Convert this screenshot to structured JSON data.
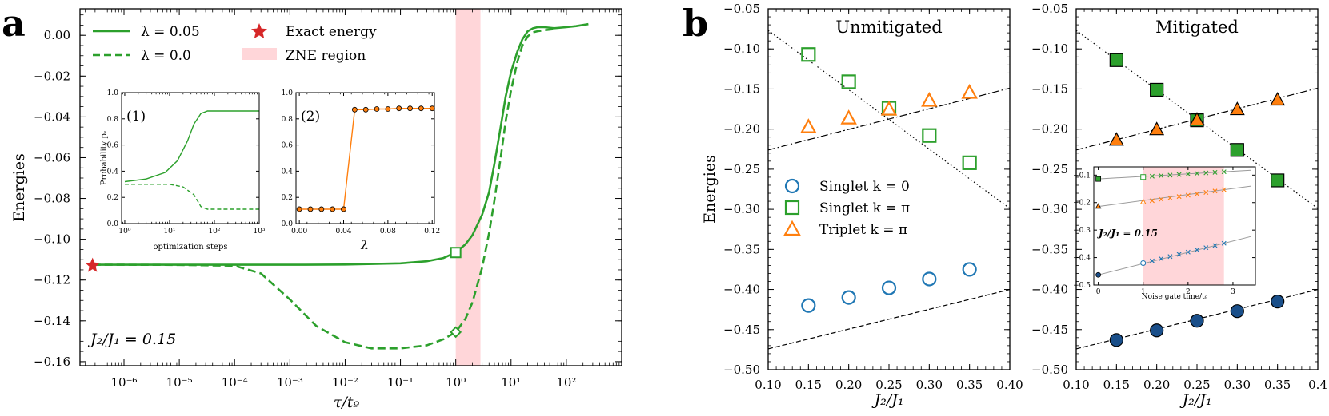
{
  "panel_a": {
    "letter": "a",
    "annotation": "J₂/J₁ = 0.15",
    "legend": {
      "line1": "λ = 0.05",
      "line2": "λ = 0.0",
      "star": "Exact energy",
      "region": "ZNE region"
    },
    "inset1": {
      "tag": "(1)",
      "xlabel": "optimization steps",
      "ylabel": "Probability pₛ"
    },
    "inset2": {
      "tag": "(2)",
      "xlabel": "λ"
    }
  },
  "panel_b": {
    "letter": "b",
    "left_title": "Unmitigated",
    "right_title": "Mitigated",
    "inset_annotation": "J₂/J₁ = 0.15",
    "inset_xlabel": "Noise gate time/t₉",
    "legend": {
      "s0": "Singlet k = 0",
      "spi": "Singlet k = π",
      "tpi": "Triplet k = π"
    }
  },
  "colors": {
    "green": "#2ca02c",
    "orange": "#ff7f0e",
    "blue": "#1f77b4",
    "darkblue": "#1a4f8a",
    "pink": "#ffd6d9",
    "red": "#d62728"
  },
  "chart_data": [
    {
      "id": "a-main",
      "type": "line",
      "xscale": "log",
      "xlabel": "τ/t₉",
      "ylabel": "Energies",
      "xlim": [
        1.6e-07,
        1000
      ],
      "ylim": [
        -0.162,
        0.013
      ],
      "xticks": [
        1e-06,
        1e-05,
        0.0001,
        0.001,
        0.01,
        0.1,
        1,
        10,
        100
      ],
      "xticklabels": [
        "10⁻⁶",
        "10⁻⁵",
        "10⁻⁴",
        "10⁻³",
        "10⁻²",
        "10⁻¹",
        "10⁰",
        "10¹",
        "10²"
      ],
      "yticks": [
        0.0,
        -0.02,
        -0.04,
        -0.06,
        -0.08,
        -0.1,
        -0.12,
        -0.14,
        -0.16
      ],
      "yticklabels": [
        "0.00",
        "−0.02",
        "−0.04",
        "−0.06",
        "−0.08",
        "−0.10",
        "−0.12",
        "−0.14",
        "−0.16"
      ],
      "zne_region": [
        1,
        2.8
      ],
      "exact_energy": {
        "x": 2.7e-07,
        "y": -0.1125
      },
      "series": [
        {
          "name": "λ = 0.05",
          "style": "solid",
          "x": [
            2.7e-07,
            1e-06,
            1e-05,
            0.0001,
            0.001,
            0.01,
            0.1,
            0.3,
            0.6,
            1.0,
            1.5,
            2.0,
            3.0,
            4.0,
            5.0,
            6.5,
            8.0,
            10,
            13,
            16,
            20,
            25,
            30,
            40,
            60,
            100,
            150,
            250
          ],
          "y": [
            -0.1125,
            -0.1125,
            -0.1125,
            -0.1125,
            -0.1125,
            -0.1124,
            -0.1118,
            -0.1108,
            -0.1092,
            -0.1065,
            -0.1025,
            -0.098,
            -0.088,
            -0.077,
            -0.063,
            -0.045,
            -0.03,
            -0.018,
            -0.008,
            -0.002,
            0.002,
            0.0035,
            0.004,
            0.004,
            0.0035,
            0.004,
            0.0045,
            0.0055
          ]
        },
        {
          "name": "λ = 0.0",
          "style": "dashed",
          "x": [
            2.7e-07,
            1e-06,
            1e-05,
            0.0001,
            0.0003,
            0.001,
            0.003,
            0.01,
            0.03,
            0.1,
            0.3,
            0.6,
            1.0,
            1.5,
            2.0,
            3.0,
            4.0,
            5.0,
            6.5,
            8.0,
            10,
            13,
            16,
            20,
            25,
            30,
            40,
            60
          ],
          "y": [
            -0.1125,
            -0.1125,
            -0.1126,
            -0.113,
            -0.1168,
            -0.1295,
            -0.1425,
            -0.1505,
            -0.1535,
            -0.1535,
            -0.152,
            -0.149,
            -0.1455,
            -0.139,
            -0.131,
            -0.114,
            -0.097,
            -0.081,
            -0.06,
            -0.042,
            -0.027,
            -0.013,
            -0.005,
            -0.0005,
            0.0015,
            0.002,
            0.0025,
            0.003
          ]
        }
      ],
      "markers": [
        {
          "shape": "square",
          "x": 1.0,
          "y": -0.1065
        },
        {
          "shape": "diamond",
          "x": 1.0,
          "y": -0.1455
        }
      ]
    },
    {
      "id": "a-inset1",
      "type": "line",
      "xscale": "log",
      "xlim": [
        0.85,
        1000
      ],
      "ylim": [
        0,
        1
      ],
      "yticks": [
        0,
        0.2,
        0.4,
        0.6,
        0.8,
        1.0
      ],
      "yticklabels": [
        "0.0",
        "0.2",
        "0.4",
        "0.6",
        "0.8",
        "1.0"
      ],
      "xticks": [
        1,
        10,
        100,
        1000
      ],
      "xticklabels": [
        "10⁰",
        "10¹",
        "10²",
        "10³"
      ],
      "series": [
        {
          "name": "λ = 0.05",
          "style": "solid",
          "x": [
            1,
            3,
            8,
            15,
            25,
            35,
            50,
            70,
            100,
            1000
          ],
          "y": [
            0.32,
            0.34,
            0.39,
            0.48,
            0.63,
            0.76,
            0.84,
            0.86,
            0.86,
            0.86
          ]
        },
        {
          "name": "λ = 0.0",
          "style": "dashed",
          "x": [
            1,
            10,
            20,
            35,
            50,
            70,
            100,
            1000
          ],
          "y": [
            0.3,
            0.3,
            0.28,
            0.22,
            0.13,
            0.11,
            0.11,
            0.11
          ]
        }
      ]
    },
    {
      "id": "a-inset2",
      "type": "line",
      "xlim": [
        -0.003,
        0.122
      ],
      "ylim": [
        0,
        1
      ],
      "yticks": [
        0,
        0.2,
        0.4,
        0.6,
        0.8,
        1.0
      ],
      "yticklabels": [
        "0.0",
        "0.2",
        "0.4",
        "0.6",
        "0.8",
        "1.0"
      ],
      "xticks": [
        0,
        0.04,
        0.08,
        0.12
      ],
      "xticklabels": [
        "0.00",
        "0.04",
        "0.08",
        "0.12"
      ],
      "x": [
        0,
        0.01,
        0.02,
        0.03,
        0.04,
        0.05,
        0.06,
        0.07,
        0.08,
        0.09,
        0.1,
        0.11,
        0.12
      ],
      "y": [
        0.11,
        0.11,
        0.11,
        0.11,
        0.11,
        0.87,
        0.87,
        0.875,
        0.875,
        0.88,
        0.88,
        0.88,
        0.88
      ]
    },
    {
      "id": "b-left",
      "type": "scatter",
      "xlabel": "J₂/J₁",
      "ylabel": "Energies",
      "xlim": [
        0.1,
        0.4
      ],
      "ylim": [
        -0.5,
        -0.05
      ],
      "xticks": [
        0.1,
        0.15,
        0.2,
        0.25,
        0.3,
        0.35,
        0.4
      ],
      "xticklabels": [
        "0.10",
        "0.15",
        "0.20",
        "0.25",
        "0.30",
        "0.35",
        "0.40"
      ],
      "yticks": [
        -0.05,
        -0.1,
        -0.15,
        -0.2,
        -0.25,
        -0.3,
        -0.35,
        -0.4,
        -0.45,
        -0.5
      ],
      "yticklabels": [
        "−0.05",
        "−0.10",
        "−0.15",
        "−0.20",
        "−0.25",
        "−0.30",
        "−0.35",
        "−0.40",
        "−0.45",
        "−0.50"
      ],
      "x": [
        0.15,
        0.2,
        0.25,
        0.3,
        0.35
      ],
      "series": [
        {
          "name": "Singlet k = 0",
          "marker": "circle",
          "values": [
            -0.42,
            -0.41,
            -0.398,
            -0.387,
            -0.375
          ]
        },
        {
          "name": "Singlet k = π",
          "marker": "square",
          "values": [
            -0.107,
            -0.141,
            -0.174,
            -0.208,
            -0.242
          ]
        },
        {
          "name": "Triplet k = π",
          "marker": "triangle",
          "values": [
            -0.198,
            -0.187,
            -0.176,
            -0.165,
            -0.155
          ]
        }
      ],
      "reference_lines": [
        {
          "style": "dashed",
          "x": [
            0.1,
            0.4
          ],
          "y": [
            -0.474,
            -0.4
          ]
        },
        {
          "style": "dotted",
          "x": [
            0.1,
            0.4
          ],
          "y": [
            -0.077,
            -0.299
          ]
        },
        {
          "style": "dashdot",
          "x": [
            0.1,
            0.4
          ],
          "y": [
            -0.226,
            -0.149
          ]
        }
      ]
    },
    {
      "id": "b-right",
      "type": "scatter",
      "xlabel": "J₂/J₁",
      "xlim": [
        0.1,
        0.4
      ],
      "ylim": [
        -0.5,
        -0.05
      ],
      "xticks": [
        0.1,
        0.15,
        0.2,
        0.25,
        0.3,
        0.35,
        0.4
      ],
      "xticklabels": [
        "0.10",
        "0.15",
        "0.20",
        "0.25",
        "0.30",
        "0.35",
        "0.4"
      ],
      "yticks": [
        -0.05,
        -0.1,
        -0.15,
        -0.2,
        -0.25,
        -0.3,
        -0.35,
        -0.4,
        -0.45,
        -0.5
      ],
      "yticklabels": [
        "−0.05",
        "−0.10",
        "−0.15",
        "−0.20",
        "−0.25",
        "−0.30",
        "−0.35",
        "−0.40",
        "−0.45",
        "−0.50"
      ],
      "x": [
        0.15,
        0.2,
        0.25,
        0.3,
        0.35
      ],
      "series": [
        {
          "name": "Singlet k = 0",
          "marker": "circle",
          "values": [
            -0.463,
            -0.451,
            -0.439,
            -0.427,
            -0.415
          ]
        },
        {
          "name": "Singlet k = π",
          "marker": "square",
          "values": [
            -0.114,
            -0.151,
            -0.189,
            -0.226,
            -0.264
          ]
        },
        {
          "name": "Triplet k = π",
          "marker": "triangle",
          "values": [
            -0.214,
            -0.201,
            -0.189,
            -0.176,
            -0.164
          ]
        }
      ],
      "reference_lines": [
        {
          "style": "dashed",
          "x": [
            0.1,
            0.4
          ],
          "y": [
            -0.474,
            -0.4
          ]
        },
        {
          "style": "dotted",
          "x": [
            0.1,
            0.4
          ],
          "y": [
            -0.077,
            -0.299
          ]
        },
        {
          "style": "dashdot",
          "x": [
            0.1,
            0.4
          ],
          "y": [
            -0.226,
            -0.149
          ]
        }
      ]
    },
    {
      "id": "b-inset",
      "type": "scatter",
      "xlim": [
        -0.1,
        3.5
      ],
      "ylim": [
        -0.5,
        -0.07
      ],
      "zne_region": [
        1,
        2.8
      ],
      "xticks": [
        0,
        1,
        2,
        3
      ],
      "xticklabels": [
        "0",
        "1",
        "2",
        "3"
      ],
      "yticks": [
        -0.1,
        -0.2,
        -0.3,
        -0.4,
        -0.5
      ],
      "yticklabels": [
        "−0.1",
        "−0.2",
        "−0.3",
        "−0.4",
        "−0.5"
      ],
      "series": [
        {
          "name": "Singlet k = π",
          "marker": "x",
          "x": [
            1.0,
            1.2,
            1.4,
            1.6,
            1.8,
            2.0,
            2.2,
            2.4,
            2.6,
            2.8
          ],
          "values": [
            -0.107,
            -0.104,
            -0.102,
            -0.1,
            -0.098,
            -0.096,
            -0.094,
            -0.092,
            -0.09,
            -0.088
          ],
          "extrapolated": {
            "x": 0,
            "y": -0.114
          }
        },
        {
          "name": "Triplet k = π",
          "marker": "x",
          "x": [
            1.0,
            1.2,
            1.4,
            1.6,
            1.8,
            2.0,
            2.2,
            2.4,
            2.6,
            2.8
          ],
          "values": [
            -0.198,
            -0.193,
            -0.188,
            -0.183,
            -0.178,
            -0.173,
            -0.168,
            -0.163,
            -0.158,
            -0.153
          ],
          "extrapolated": {
            "x": 0,
            "y": -0.214
          }
        },
        {
          "name": "Singlet k = 0",
          "marker": "x",
          "x": [
            1.0,
            1.2,
            1.4,
            1.6,
            1.8,
            2.0,
            2.2,
            2.4,
            2.6,
            2.8
          ],
          "values": [
            -0.42,
            -0.412,
            -0.404,
            -0.396,
            -0.388,
            -0.38,
            -0.372,
            -0.364,
            -0.356,
            -0.348
          ],
          "extrapolated": {
            "x": 0,
            "y": -0.463
          }
        }
      ]
    }
  ]
}
